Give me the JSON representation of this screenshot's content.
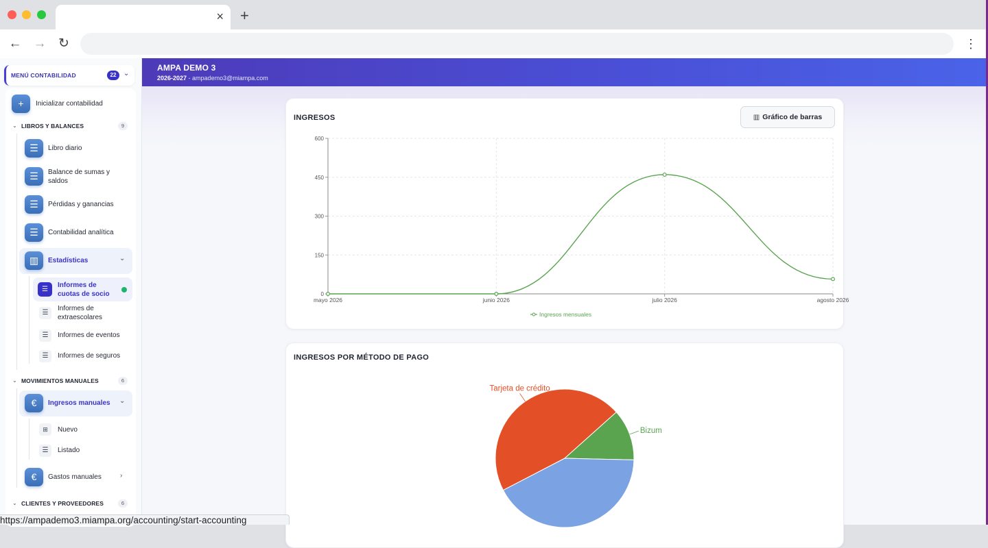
{
  "browser": {
    "tab_close": "×",
    "new_tab": "+",
    "back": "←",
    "forward": "→",
    "reload": "↻",
    "menu": "⋮",
    "status_url": "https://ampademo3.miampa.org/accounting/start-accounting"
  },
  "header": {
    "title": "AMPA DEMO 3",
    "year": "2026-2027",
    "separator": " - ",
    "email": "ampademo3@miampa.com"
  },
  "sidebar": {
    "menu_title": "MENÚ CONTABILIDAD",
    "menu_count": "22",
    "init_label": "Inicializar contabilidad",
    "sections": [
      {
        "label": "LIBROS Y BALANCES",
        "count": "9"
      },
      {
        "label": "MOVIMIENTOS MANUALES",
        "count": "6"
      },
      {
        "label": "CLIENTES Y PROVEEDORES",
        "count": "6"
      }
    ],
    "libros_items": [
      {
        "label": "Libro diario"
      },
      {
        "label": "Balance de sumas y saldos"
      },
      {
        "label": "Pérdidas y ganancias"
      },
      {
        "label": "Contabilidad analítica"
      }
    ],
    "estadisticas_label": "Estadísticas",
    "estadisticas_sub": [
      {
        "label": "Informes de cuotas de socio"
      },
      {
        "label": "Informes de extraescolares"
      },
      {
        "label": "Informes de eventos"
      },
      {
        "label": "Informes de seguros"
      }
    ],
    "ingresos_label": "Ingresos manuales",
    "ingresos_sub": [
      {
        "label": "Nuevo"
      },
      {
        "label": "Listado"
      }
    ],
    "gastos_label": "Gastos manuales"
  },
  "ingresos_card": {
    "title": "INGRESOS",
    "button_label": "Gráfico de barras"
  },
  "metodo_card": {
    "title": "INGRESOS POR MÉTODO DE PAGO"
  },
  "chart_data": [
    {
      "type": "line",
      "title": "INGRESOS",
      "x": [
        "mayo 2026",
        "junio 2026",
        "julio 2026",
        "agosto 2026"
      ],
      "series": [
        {
          "name": "Ingresos mensuales",
          "values": [
            0,
            0,
            460,
            57
          ],
          "color": "#5aa450"
        }
      ],
      "ylim": [
        0,
        600
      ],
      "yticks": [
        0,
        150,
        300,
        450,
        600
      ],
      "grid": true,
      "legend": "bottom"
    },
    {
      "type": "pie",
      "title": "INGRESOS POR MÉTODO DE PAGO",
      "slices": [
        {
          "label": "Bizum",
          "value": 12,
          "color": "#5aa450",
          "shown_label": "Bizum"
        },
        {
          "label": "",
          "value": 42,
          "color": "#7ba3e3",
          "shown_label": ""
        },
        {
          "label": "Tarjeta de crédito",
          "value": 46,
          "color": "#e34f26",
          "shown_label": "Tarjeta de crédito"
        }
      ]
    }
  ]
}
